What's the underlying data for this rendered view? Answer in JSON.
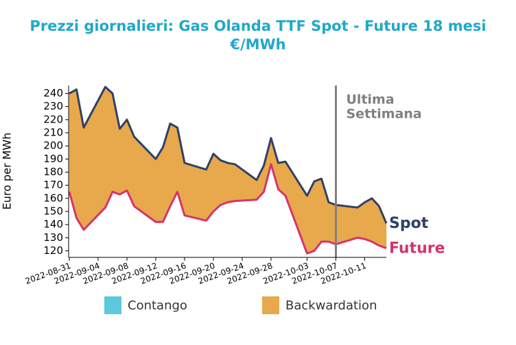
{
  "chart_data": {
    "type": "area-between",
    "title": [
      "Prezzi giornalieri: Gas Olanda TTF Spot - Future 18 mesi",
      "€/MWh"
    ],
    "ylabel": "Euro per MWh",
    "x": [
      "2022-08-31",
      "2022-09-01",
      "2022-09-02",
      "2022-09-05",
      "2022-09-06",
      "2022-09-07",
      "2022-09-08",
      "2022-09-09",
      "2022-09-12",
      "2022-09-13",
      "2022-09-14",
      "2022-09-15",
      "2022-09-16",
      "2022-09-19",
      "2022-09-20",
      "2022-09-21",
      "2022-09-22",
      "2022-09-23",
      "2022-09-26",
      "2022-09-27",
      "2022-09-28",
      "2022-09-29",
      "2022-09-30",
      "2022-10-03",
      "2022-10-04",
      "2022-10-05",
      "2022-10-06",
      "2022-10-07",
      "2022-10-10",
      "2022-10-11",
      "2022-10-12",
      "2022-10-13",
      "2022-10-14"
    ],
    "series": [
      {
        "name": "Spot",
        "color": "#2e4166",
        "values": [
          240,
          243,
          214,
          245,
          240,
          213,
          220,
          207,
          190,
          199,
          217,
          214,
          187,
          182,
          194,
          189,
          187,
          186,
          174,
          185,
          206,
          187,
          188,
          162,
          173,
          175,
          157,
          155,
          153,
          157,
          160,
          154,
          141
        ]
      },
      {
        "name": "Future",
        "color": "#d6336c",
        "values": [
          165,
          145,
          136,
          153,
          165,
          163,
          166,
          154,
          142,
          142,
          154,
          165,
          147,
          143,
          150,
          155,
          157,
          158,
          159,
          165,
          186,
          167,
          162,
          118,
          120,
          127,
          127,
          125,
          130,
          129,
          127,
          124,
          122
        ]
      }
    ],
    "fill_legend": [
      {
        "name": "Contango",
        "color": "#5bc8dc"
      },
      {
        "name": "Backwardation",
        "color": "#e8a84c"
      }
    ],
    "xlim": [
      "2022-08-31",
      "2022-10-14"
    ],
    "xticks": [
      "2022-08-31",
      "2022-09-04",
      "2022-09-08",
      "2022-09-12",
      "2022-09-16",
      "2022-09-20",
      "2022-09-24",
      "2022-09-28",
      "2022-10-03",
      "2022-10-07",
      "2022-10-11"
    ],
    "ylim": [
      115,
      246
    ],
    "yticks": [
      120,
      130,
      140,
      150,
      160,
      170,
      180,
      190,
      200,
      210,
      220,
      230,
      240
    ],
    "annotation": {
      "x": "2022-10-07",
      "lines": [
        "Ultima",
        "Settimana"
      ],
      "color": "#808080"
    }
  }
}
